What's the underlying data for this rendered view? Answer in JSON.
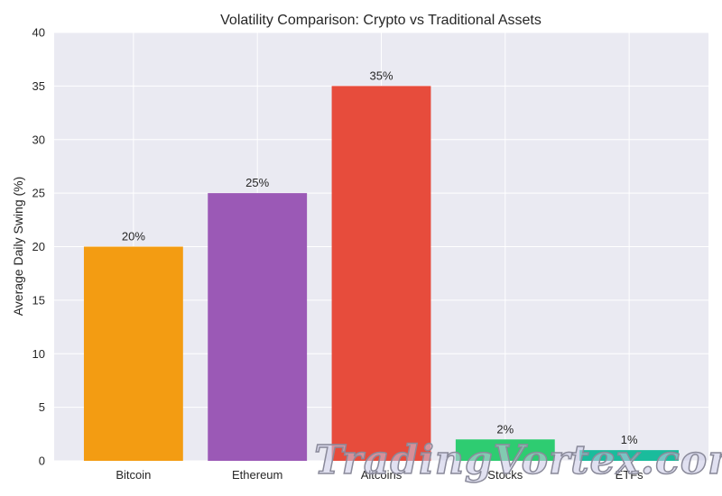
{
  "chart_data": {
    "type": "bar",
    "title": "Volatility Comparison: Crypto vs Traditional Assets",
    "xlabel": "",
    "ylabel": "Average Daily Swing (%)",
    "categories": [
      "Bitcoin",
      "Ethereum",
      "Altcoins",
      "Stocks",
      "ETFs"
    ],
    "values": [
      20,
      25,
      35,
      2,
      1
    ],
    "data_labels": [
      "20%",
      "25%",
      "35%",
      "2%",
      "1%"
    ],
    "colors": [
      "#f39c12",
      "#9b59b6",
      "#e74c3c",
      "#2ecc71",
      "#1abc9c"
    ],
    "ylim": [
      0,
      40
    ],
    "yticks": [
      0,
      5,
      10,
      15,
      20,
      25,
      30,
      35,
      40
    ],
    "grid": true,
    "background": "#eaeaf2"
  },
  "watermark": "TradingVortex.com"
}
